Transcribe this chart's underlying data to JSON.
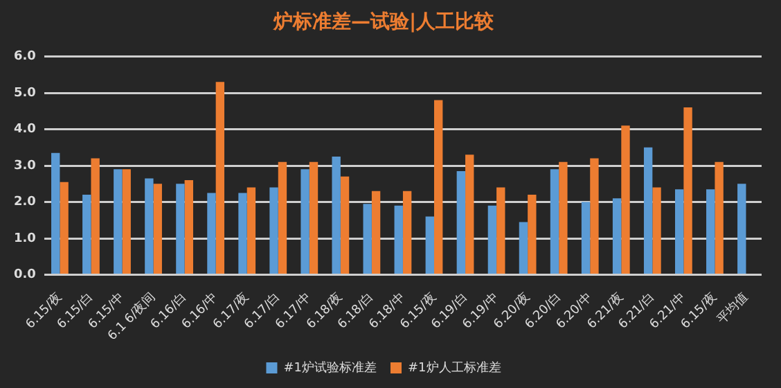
{
  "chart_data": {
    "type": "bar",
    "title": "炉标准差—试验|人工比较",
    "categories": [
      "6.15/夜",
      "6.15/白",
      "6.15/中",
      "6.1 6/夜间",
      "6.16/白",
      "6.16/中",
      "6.17/夜",
      "6.17/白",
      "6.17/中",
      "6.18/夜",
      "6.18/白",
      "6.18/中",
      "6.15/夜",
      "6.19/白",
      "6.19/中",
      "6.20/夜",
      "6.20/白",
      "6.20/中",
      "6.21/夜",
      "6.21/白",
      "6.21/中",
      "6.15/夜",
      "平均值"
    ],
    "series": [
      {
        "name": "#1炉试验标准差",
        "color": "#5b9bd5",
        "values": [
          3.35,
          2.2,
          2.9,
          2.65,
          2.5,
          2.25,
          2.25,
          2.4,
          2.9,
          3.25,
          1.95,
          1.9,
          1.6,
          2.85,
          1.9,
          1.45,
          2.9,
          2.0,
          2.1,
          3.5,
          2.35,
          2.35,
          2.5
        ]
      },
      {
        "name": "#1炉人工标准差",
        "color": "#ed7d31",
        "values": [
          2.55,
          3.2,
          2.9,
          2.5,
          2.6,
          5.3,
          2.4,
          3.1,
          3.1,
          2.7,
          2.3,
          2.3,
          4.8,
          3.3,
          2.4,
          2.2,
          3.1,
          3.2,
          4.1,
          2.4,
          4.6,
          3.1,
          null
        ]
      }
    ],
    "ylim": [
      0,
      6
    ],
    "yticks": [
      {
        "value": 0,
        "label": "0.0"
      },
      {
        "value": 1,
        "label": "1.0"
      },
      {
        "value": 2,
        "label": "2.0"
      },
      {
        "value": 3,
        "label": "3.0"
      },
      {
        "value": 4,
        "label": "4.0"
      },
      {
        "value": 5,
        "label": "5.0"
      },
      {
        "value": 6,
        "label": "6.0"
      }
    ],
    "grid": "y",
    "legend": "bottom"
  }
}
